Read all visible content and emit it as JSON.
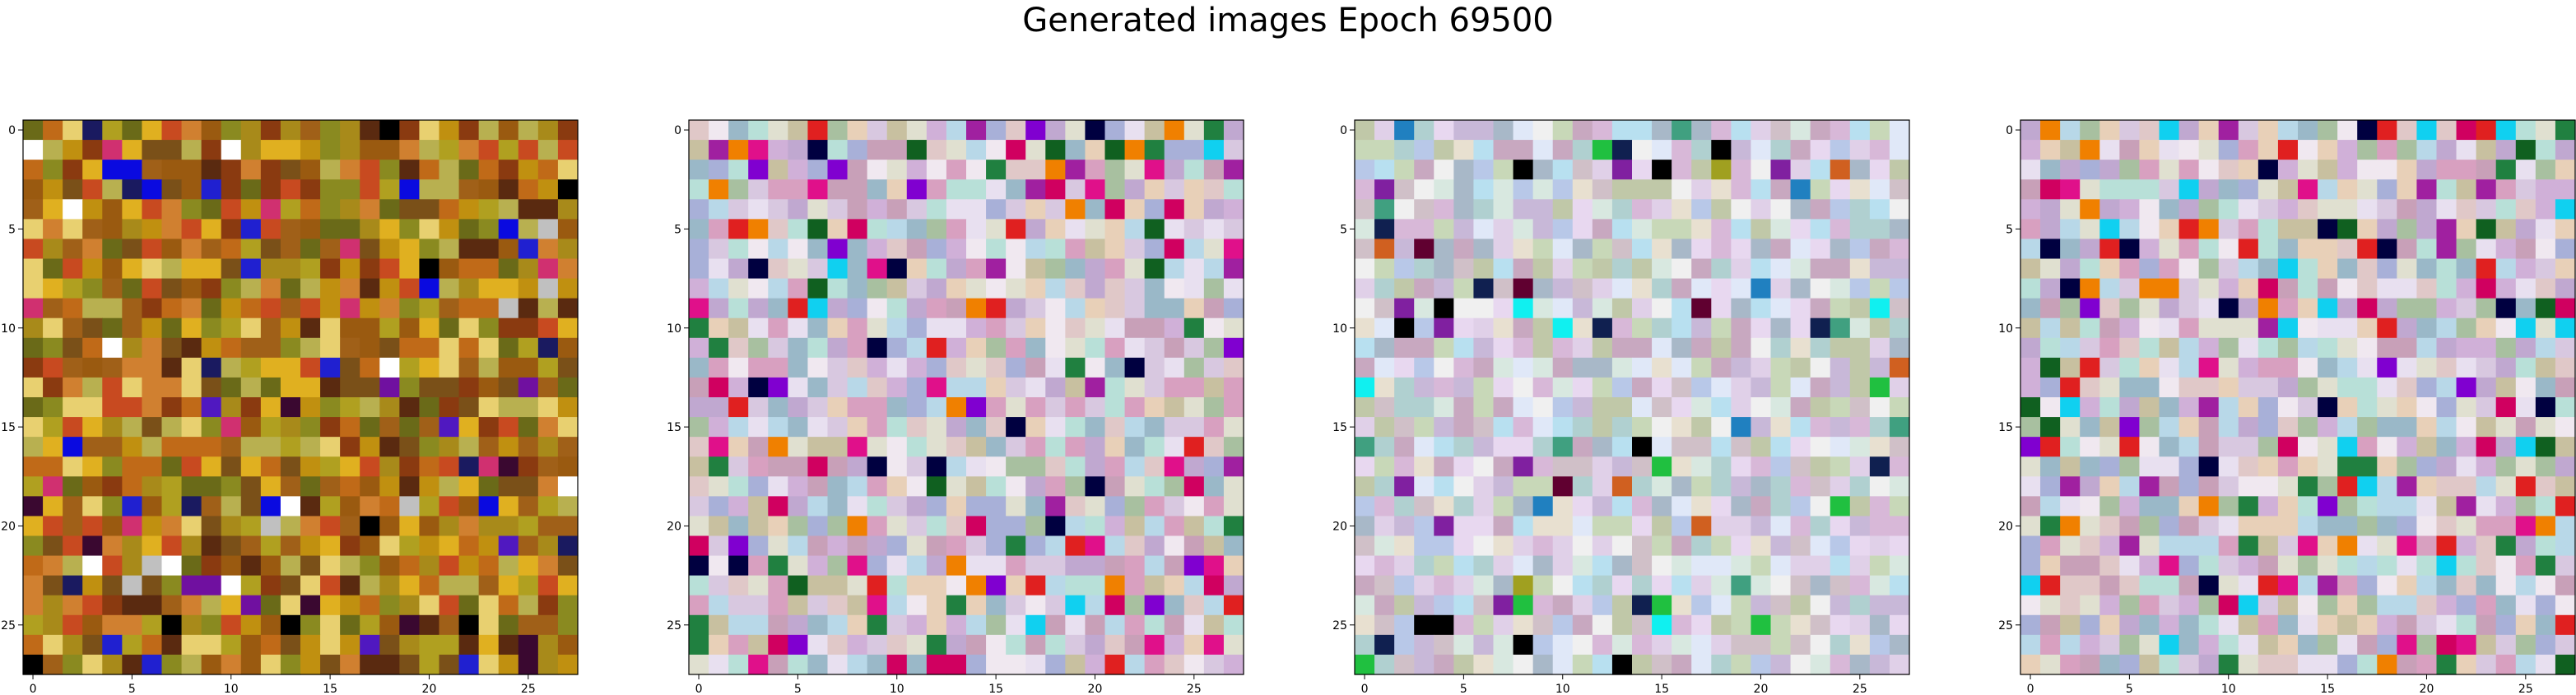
{
  "figure": {
    "title": "Generated images Epoch 69500"
  },
  "chart_data": [
    {
      "type": "heatmap",
      "title": "",
      "xlabel": "",
      "ylabel": "",
      "grid_size": 28,
      "xlim": [
        -0.5,
        27.5
      ],
      "ylim": [
        27.5,
        -0.5
      ],
      "xticks": [
        0,
        5,
        10,
        15,
        20,
        25
      ],
      "yticks": [
        0,
        5,
        10,
        15,
        20,
        25
      ],
      "grid": false,
      "palette": [
        "#a88a1a",
        "#c06a18",
        "#8a3a10",
        "#b0a020",
        "#6a6a18",
        "#e0b020",
        "#9a5a10",
        "#d08030",
        "#7a5018",
        "#b8b050",
        "#c84a20",
        "#8a8a20",
        "#5a2a10",
        "#e8d070",
        "#a06018",
        "#c09010"
      ],
      "accent_colors": [
        "#0a0ae0",
        "#2020d0",
        "#000000",
        "#5018c0",
        "#3a0830",
        "#d03070",
        "#ffffff",
        "#1a1a60",
        "#7010a0",
        "#c0c0c0"
      ],
      "accent_probability": 0.1,
      "seed": 11
    },
    {
      "type": "heatmap",
      "title": "",
      "xlabel": "",
      "ylabel": "",
      "grid_size": 28,
      "xlim": [
        -0.5,
        27.5
      ],
      "ylim": [
        27.5,
        -0.5
      ],
      "xticks": [
        0,
        5,
        10,
        15,
        20,
        25
      ],
      "yticks": [
        0,
        5,
        10,
        15,
        20,
        25
      ],
      "grid": false,
      "palette": [
        "#d8c8e0",
        "#c0a8d0",
        "#e8e0f0",
        "#a8c0a0",
        "#b8d8e8",
        "#e0c8c8",
        "#d0b0d8",
        "#c8c0a0",
        "#f0e8f0",
        "#a8b0d8",
        "#e8d0b8",
        "#b8e0d8",
        "#d8a0c0",
        "#9ab8c8",
        "#e0e0d0",
        "#c8a0b8"
      ],
      "accent_colors": [
        "#e0108a",
        "#d00060",
        "#10d0f0",
        "#a020a0",
        "#208040",
        "#000040",
        "#f08000",
        "#e02020",
        "#8000d0",
        "#106020"
      ],
      "accent_probability": 0.16,
      "seed": 23
    },
    {
      "type": "heatmap",
      "title": "",
      "xlabel": "",
      "ylabel": "",
      "grid_size": 28,
      "xlim": [
        -0.5,
        27.5
      ],
      "ylim": [
        27.5,
        -0.5
      ],
      "xticks": [
        0,
        5,
        10,
        15,
        20,
        25
      ],
      "yticks": [
        0,
        5,
        10,
        15,
        20,
        25
      ],
      "grid": false,
      "palette": [
        "#e0d0e8",
        "#c8b8d8",
        "#d8e8e0",
        "#b8c8e8",
        "#e8e0d0",
        "#c8d8b8",
        "#d0c0c8",
        "#f0f0f0",
        "#b0d0d0",
        "#d8b8d8",
        "#c0c8a8",
        "#e8d8f0",
        "#a8b8c8",
        "#e0e8f8",
        "#c8a8c0",
        "#b8e0f0"
      ],
      "accent_colors": [
        "#000000",
        "#10f0f0",
        "#2080c0",
        "#8020a0",
        "#20c040",
        "#d06020",
        "#102050",
        "#600030",
        "#40a080",
        "#a0a020"
      ],
      "accent_probability": 0.08,
      "seed": 37
    },
    {
      "type": "heatmap",
      "title": "",
      "xlabel": "",
      "ylabel": "",
      "grid_size": 28,
      "xlim": [
        -0.5,
        27.5
      ],
      "ylim": [
        27.5,
        -0.5
      ],
      "xticks": [
        0,
        5,
        10,
        15,
        20,
        25
      ],
      "yticks": [
        0,
        5,
        10,
        15,
        20,
        25
      ],
      "grid": false,
      "palette": [
        "#d8c8e0",
        "#c0a8d0",
        "#e8e0f0",
        "#a8c0a0",
        "#b8d8e8",
        "#e0c8c8",
        "#d0b0d8",
        "#c8c0a0",
        "#f0e8f0",
        "#a8b0d8",
        "#e8d0b8",
        "#b8e0d8",
        "#d8a0c0",
        "#9ab8c8",
        "#e0e0d0",
        "#c8a0b8"
      ],
      "accent_colors": [
        "#e0108a",
        "#d00060",
        "#10d0f0",
        "#a020a0",
        "#208040",
        "#000040",
        "#f08000",
        "#e02020",
        "#8000d0",
        "#106020"
      ],
      "accent_probability": 0.16,
      "seed": 53
    }
  ]
}
